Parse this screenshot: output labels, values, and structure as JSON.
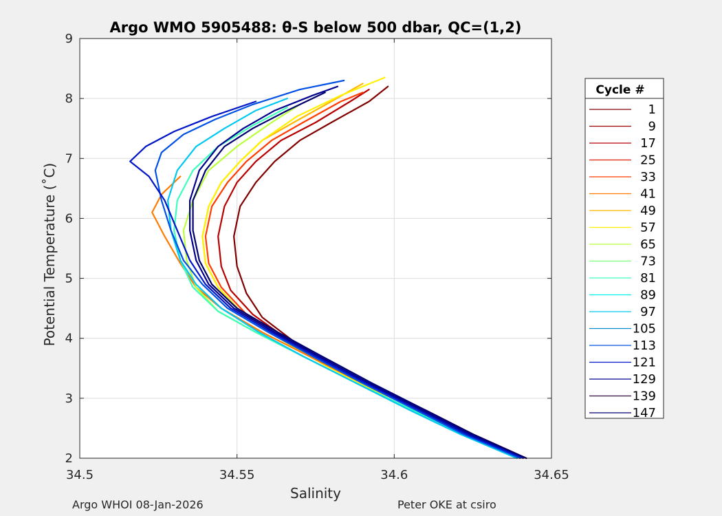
{
  "chart_data": {
    "type": "line",
    "title": "Argo WMO 5905488: θ-S below 500 dbar,  QC=(1,2)",
    "xlabel": "Salinity",
    "ylabel": "Potential Temperature (˚C)",
    "xlim": [
      34.5,
      34.65
    ],
    "ylim": [
      2,
      9
    ],
    "xticks": [
      34.5,
      34.55,
      34.6,
      34.65
    ],
    "xtick_labels": [
      "34.5",
      "34.55",
      "34.6",
      "34.65"
    ],
    "yticks": [
      2,
      3,
      4,
      5,
      6,
      7,
      8,
      9
    ],
    "ytick_labels": [
      "2",
      "3",
      "4",
      "5",
      "6",
      "7",
      "8",
      "9"
    ],
    "grid": true,
    "legend_position": "right",
    "legend_title": "Cycle #",
    "legend": [
      {
        "label": "1",
        "color": "#800000"
      },
      {
        "label": "9",
        "color": "#9c0000"
      },
      {
        "label": "17",
        "color": "#b80000"
      },
      {
        "label": "25",
        "color": "#dd1a00"
      },
      {
        "label": "33",
        "color": "#ff3c00"
      },
      {
        "label": "41",
        "color": "#ff7a00"
      },
      {
        "label": "49",
        "color": "#ffb800"
      },
      {
        "label": "57",
        "color": "#fff200"
      },
      {
        "label": "65",
        "color": "#b9ff3c"
      },
      {
        "label": "73",
        "color": "#7dff7a"
      },
      {
        "label": "81",
        "color": "#3cffb9"
      },
      {
        "label": "89",
        "color": "#00f0f0"
      },
      {
        "label": "97",
        "color": "#00c8f0"
      },
      {
        "label": "105",
        "color": "#008cd2"
      },
      {
        "label": "113",
        "color": "#0050e6"
      },
      {
        "label": "121",
        "color": "#0014c8"
      },
      {
        "label": "129",
        "color": "#000090"
      },
      {
        "label": "139",
        "color": "#2d0a3c"
      },
      {
        "label": "147",
        "color": "#000070"
      }
    ],
    "series": [
      {
        "name": "1",
        "color": "#800000",
        "x": [
          34.642,
          34.625,
          34.61,
          34.595,
          34.58,
          34.568,
          34.558,
          34.553,
          34.55,
          34.549,
          34.551,
          34.556,
          34.562,
          34.57,
          34.58,
          34.592,
          34.598
        ],
        "y": [
          2.0,
          2.4,
          2.8,
          3.15,
          3.55,
          3.95,
          4.35,
          4.75,
          5.2,
          5.7,
          6.2,
          6.6,
          6.95,
          7.3,
          7.6,
          7.95,
          8.2
        ]
      },
      {
        "name": "17",
        "color": "#b80000",
        "x": [
          34.642,
          34.625,
          34.61,
          34.595,
          34.58,
          34.567,
          34.555,
          34.548,
          34.545,
          34.544,
          34.546,
          34.55,
          34.556,
          34.564,
          34.575,
          34.586,
          34.592
        ],
        "y": [
          2.0,
          2.4,
          2.8,
          3.15,
          3.55,
          3.95,
          4.4,
          4.8,
          5.2,
          5.7,
          6.2,
          6.6,
          6.95,
          7.3,
          7.6,
          7.95,
          8.15
        ]
      },
      {
        "name": "33",
        "color": "#ff3c00",
        "x": [
          34.641,
          34.624,
          34.609,
          34.594,
          34.579,
          34.566,
          34.553,
          34.545,
          34.541,
          34.54,
          34.542,
          34.547,
          34.553,
          34.561,
          34.571,
          34.583,
          34.59
        ],
        "y": [
          2.0,
          2.4,
          2.8,
          3.15,
          3.55,
          3.95,
          4.4,
          4.85,
          5.25,
          5.7,
          6.2,
          6.6,
          6.95,
          7.3,
          7.6,
          7.95,
          8.1
        ]
      },
      {
        "name": "49",
        "color": "#ffb800",
        "x": [
          34.64,
          34.623,
          34.608,
          34.593,
          34.578,
          34.565,
          34.552,
          34.544,
          34.54,
          34.539,
          34.541,
          34.545,
          34.551,
          34.558,
          34.568,
          34.58,
          34.59
        ],
        "y": [
          2.0,
          2.4,
          2.8,
          3.15,
          3.55,
          3.95,
          4.4,
          4.85,
          5.25,
          5.7,
          6.2,
          6.6,
          6.95,
          7.3,
          7.6,
          7.95,
          8.25
        ]
      },
      {
        "name": "57",
        "color": "#fff200",
        "x": [
          34.64,
          34.623,
          34.608,
          34.593,
          34.578,
          34.565,
          34.552,
          34.544,
          34.54,
          34.539,
          34.541,
          34.545,
          34.551,
          34.558,
          34.569,
          34.583,
          34.597
        ],
        "y": [
          2.0,
          2.4,
          2.8,
          3.15,
          3.55,
          3.95,
          4.4,
          4.85,
          5.25,
          5.7,
          6.2,
          6.6,
          6.95,
          7.3,
          7.7,
          8.05,
          8.35
        ]
      },
      {
        "name": "41",
        "color": "#ff7a00",
        "x": [
          34.641,
          34.624,
          34.608,
          34.59,
          34.573,
          34.558,
          34.545,
          34.537,
          34.532,
          34.527,
          34.523,
          34.526,
          34.532
        ],
        "y": [
          2.0,
          2.4,
          2.8,
          3.25,
          3.7,
          4.1,
          4.5,
          4.85,
          5.25,
          5.7,
          6.1,
          6.4,
          6.7
        ]
      },
      {
        "name": "65",
        "color": "#b9ff3c",
        "x": [
          34.64,
          34.622,
          34.606,
          34.588,
          34.571,
          34.556,
          34.544,
          34.537,
          34.534,
          34.533,
          34.536,
          34.541,
          34.55,
          34.561,
          34.57
        ],
        "y": [
          2.0,
          2.4,
          2.8,
          3.25,
          3.7,
          4.1,
          4.45,
          4.85,
          5.3,
          5.8,
          6.3,
          6.8,
          7.2,
          7.6,
          7.9
        ]
      },
      {
        "name": "81",
        "color": "#3cffb9",
        "x": [
          34.64,
          34.622,
          34.606,
          34.588,
          34.571,
          34.556,
          34.544,
          34.536,
          34.532,
          34.53,
          34.531,
          34.536,
          34.544,
          34.555,
          34.566
        ],
        "y": [
          2.0,
          2.4,
          2.8,
          3.25,
          3.7,
          4.1,
          4.45,
          4.85,
          5.3,
          5.8,
          6.3,
          6.8,
          7.2,
          7.55,
          7.85
        ]
      },
      {
        "name": "97",
        "color": "#00c8f0",
        "x": [
          34.639,
          34.621,
          34.605,
          34.588,
          34.571,
          34.557,
          34.545,
          34.537,
          34.532,
          34.529,
          34.528,
          34.531,
          34.537,
          34.546,
          34.556,
          34.566
        ],
        "y": [
          2.0,
          2.4,
          2.8,
          3.25,
          3.7,
          4.1,
          4.5,
          4.9,
          5.3,
          5.8,
          6.3,
          6.8,
          7.2,
          7.5,
          7.8,
          8.0
        ]
      },
      {
        "name": "113",
        "color": "#0050e6",
        "x": [
          34.64,
          34.622,
          34.607,
          34.59,
          34.574,
          34.56,
          34.547,
          34.539,
          34.533,
          34.529,
          34.526,
          34.524,
          34.526,
          34.533,
          34.543,
          34.555,
          34.57,
          34.584
        ],
        "y": [
          2.0,
          2.4,
          2.8,
          3.25,
          3.7,
          4.1,
          4.5,
          4.9,
          5.3,
          5.8,
          6.3,
          6.8,
          7.1,
          7.4,
          7.65,
          7.9,
          8.15,
          8.3
        ]
      },
      {
        "name": "121",
        "color": "#0014c8",
        "x": [
          34.641,
          34.623,
          34.608,
          34.591,
          34.575,
          34.561,
          34.548,
          34.54,
          34.535,
          34.531,
          34.527,
          34.522,
          34.516,
          34.521,
          34.53,
          34.542,
          34.556
        ],
        "y": [
          2.0,
          2.4,
          2.8,
          3.25,
          3.7,
          4.1,
          4.5,
          4.9,
          5.3,
          5.8,
          6.3,
          6.7,
          6.95,
          7.2,
          7.45,
          7.7,
          7.95
        ]
      },
      {
        "name": "129",
        "color": "#000090",
        "x": [
          34.642,
          34.624,
          34.609,
          34.592,
          34.576,
          34.562,
          34.549,
          34.541,
          34.537,
          34.535,
          34.535,
          34.538,
          34.544,
          34.552,
          34.562,
          34.574,
          34.582
        ],
        "y": [
          2.0,
          2.4,
          2.8,
          3.25,
          3.7,
          4.1,
          4.5,
          4.9,
          5.3,
          5.8,
          6.3,
          6.8,
          7.2,
          7.5,
          7.8,
          8.05,
          8.2
        ]
      },
      {
        "name": "147",
        "color": "#000070",
        "x": [
          34.642,
          34.625,
          34.61,
          34.593,
          34.577,
          34.563,
          34.55,
          34.542,
          34.538,
          34.536,
          34.536,
          34.54,
          34.546,
          34.555,
          34.566,
          34.578
        ],
        "y": [
          2.0,
          2.4,
          2.8,
          3.25,
          3.7,
          4.1,
          4.5,
          4.9,
          5.3,
          5.8,
          6.3,
          6.8,
          7.2,
          7.5,
          7.8,
          8.1
        ]
      }
    ]
  },
  "footer": {
    "left": "Argo WHOI 08-Jan-2026",
    "right": "Peter OKE at csiro"
  }
}
